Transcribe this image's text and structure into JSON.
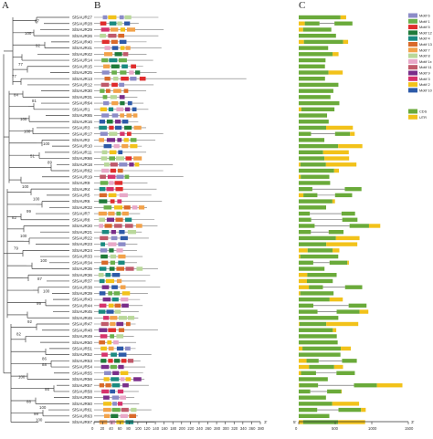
{
  "figure": {
    "panel_labels": [
      "A",
      "B",
      "C"
    ]
  },
  "genes": [
    "SlSAUR27",
    "SlSAUR28",
    "SlSAUR29",
    "SlSAUR26",
    "SlSAUR40",
    "SlSAUR41",
    "SlSAUR42",
    "SlSAUR14",
    "SlSAUR15",
    "SlSAUR25",
    "SlSAUR13",
    "SlSAUR12",
    "SlSAUR30",
    "SlSAUR31",
    "SlSAUR64",
    "SlSAUR1",
    "SlSAUR65",
    "SlSAUR16",
    "SlSAUR3",
    "SlSAUR17",
    "SlSAUR2",
    "SlSAUR10",
    "SlSAUR11",
    "SlSAUR66",
    "SlSAUR18",
    "SlSAUR62",
    "SlSAUR19",
    "SlSAUR9",
    "SlSAUR4",
    "SlSAUR5",
    "SlSAUR6",
    "SlSAUR32",
    "SlSAUR7",
    "SlSAUR8",
    "SlSAUR20",
    "SlSAUR21",
    "SlSAUR22",
    "SlSAUR23",
    "SlSAUR24",
    "SlSAUR33",
    "SlSAUR34",
    "SlSAUR35",
    "SlSAUR36",
    "SlSAUR37",
    "SlSAUR38",
    "SlSAUR39",
    "SlSAUR43",
    "SlSAUR44",
    "SlSAUR45",
    "SlSAUR46",
    "SlSAUR47",
    "SlSAUR48",
    "SlSAUR49",
    "SlSAUR50",
    "SlSAUR51",
    "SlSAUR52",
    "SlSAUR53",
    "SlSAUR54",
    "SlSAUR55",
    "SlSAUR56",
    "SlSAUR57",
    "SlSAUR58",
    "SlSAUR59",
    "SlSAUR60",
    "SlSAUR61",
    "SlSAUR63",
    "SlSAUR67"
  ],
  "bootstrap": [
    {
      "v": "87",
      "row": 1
    },
    {
      "v": "100",
      "row": 3
    },
    {
      "v": "92",
      "row": 5
    },
    {
      "v": "77",
      "row": 8
    },
    {
      "v": "77",
      "row": 10
    },
    {
      "v": "84",
      "row": 13
    },
    {
      "v": "81",
      "row": 14
    },
    {
      "v": "100",
      "row": 17
    },
    {
      "v": "100",
      "row": 19
    },
    {
      "v": "100",
      "row": 21
    },
    {
      "v": "51",
      "row": 23
    },
    {
      "v": "89",
      "row": 24
    },
    {
      "v": "100",
      "row": 28
    },
    {
      "v": "100",
      "row": 30
    },
    {
      "v": "99",
      "row": 32
    },
    {
      "v": "82",
      "row": 33
    },
    {
      "v": "100",
      "row": 36
    },
    {
      "v": "79",
      "row": 38
    },
    {
      "v": "100",
      "row": 40
    },
    {
      "v": "87",
      "row": 43
    },
    {
      "v": "100",
      "row": 45
    },
    {
      "v": "99",
      "row": 47
    },
    {
      "v": "92",
      "row": 50
    },
    {
      "v": "82",
      "row": 52
    },
    {
      "v": "86",
      "row": 56
    },
    {
      "v": "88",
      "row": 57
    },
    {
      "v": "100",
      "row": 59
    },
    {
      "v": "95",
      "row": 61
    },
    {
      "v": "88",
      "row": 63
    },
    {
      "v": "100",
      "row": 64
    },
    {
      "v": "99",
      "row": 65
    },
    {
      "v": "100",
      "row": 66
    }
  ],
  "motif_axis": {
    "ticks": [
      "0",
      "20",
      "40",
      "60",
      "80",
      "100",
      "120",
      "140",
      "160",
      "180",
      "200",
      "220",
      "240",
      "260",
      "280",
      "300",
      "320",
      "340",
      "360",
      "380"
    ],
    "end": "3'"
  },
  "gene_axis": {
    "ticks": [
      "0",
      "500",
      "1000",
      "1500"
    ],
    "start": "5'",
    "end": "3'"
  },
  "motif_legend": [
    {
      "label": "Motif 6",
      "color": "#8c8cc8"
    },
    {
      "label": "Motif 1",
      "color": "#6ab04c"
    },
    {
      "label": "Motif 5",
      "color": "#e02d2d"
    },
    {
      "label": "Motif 12",
      "color": "#1f7a3a"
    },
    {
      "label": "Motif 4",
      "color": "#1a8a80"
    },
    {
      "label": "Motif 13",
      "color": "#d96a2a"
    },
    {
      "label": "Motif 7",
      "color": "#f2a24a"
    },
    {
      "label": "Motif 8",
      "color": "#b9d89a"
    },
    {
      "label": "Motif 1x",
      "color": "#e8a8c8"
    },
    {
      "label": "Motif 11",
      "color": "#c05a6a"
    },
    {
      "label": "Motif 9",
      "color": "#7a2e8a"
    },
    {
      "label": "Motif 3",
      "color": "#d6336c"
    },
    {
      "label": "Motif 2",
      "color": "#f2c21a"
    },
    {
      "label": "Motif 10",
      "color": "#2d5aa8"
    }
  ],
  "gene_legend": [
    {
      "label": "CDS",
      "color": "#6aaa3a"
    },
    {
      "label": "UTR",
      "color": "#f2c21a"
    }
  ]
}
